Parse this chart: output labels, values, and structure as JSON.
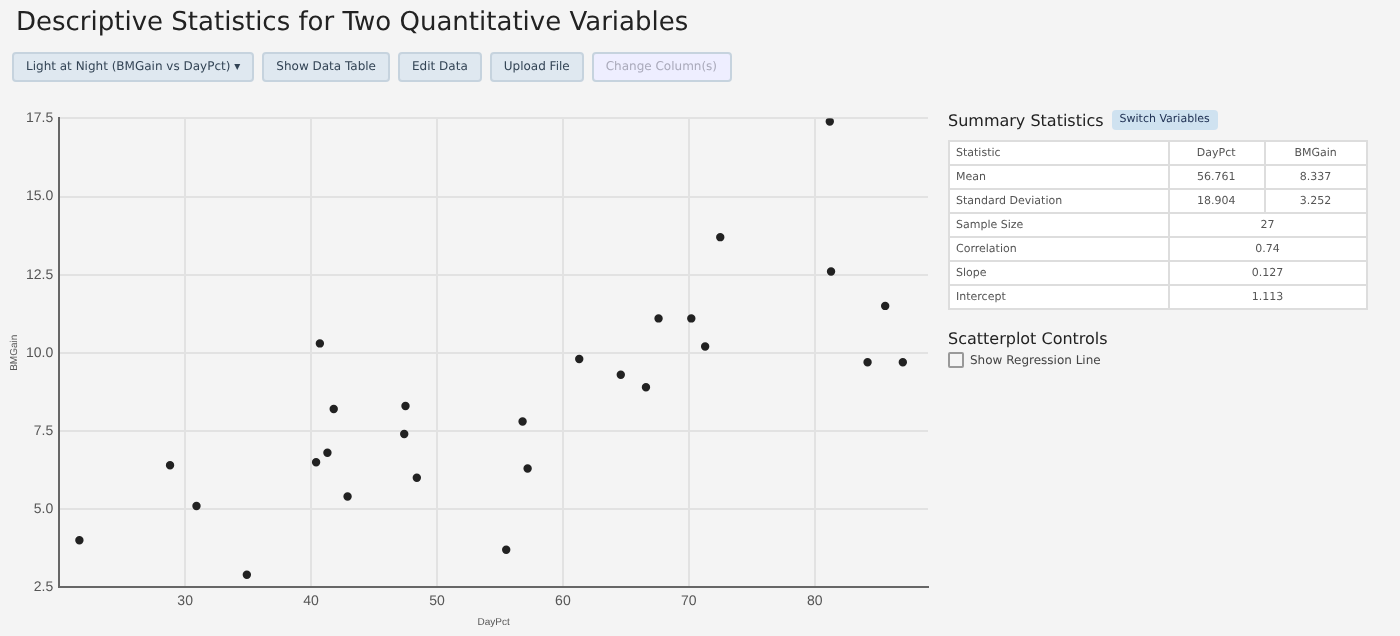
{
  "chart_data": {
    "type": "scatter",
    "title": "Descriptive Statistics for Two Quantitative Variables",
    "xlabel": "DayPct",
    "ylabel": "BMGain",
    "x": [
      21.6,
      28.8,
      30.9,
      34.9,
      40.7,
      41.8,
      41.3,
      40.4,
      42.9,
      47.5,
      47.4,
      48.4,
      81.2,
      72.5,
      81.3,
      85.6,
      67.6,
      70.2,
      71.3,
      61.3,
      84.2,
      87.0,
      64.6,
      66.6,
      56.8,
      57.2,
      55.5
    ],
    "series": [
      {
        "color": "#222222",
        "values": [
          4.0,
          6.4,
          5.1,
          2.9,
          10.3,
          8.2,
          6.8,
          6.5,
          5.4,
          8.3,
          7.4,
          6.0,
          17.4,
          13.7,
          12.6,
          11.5,
          11.1,
          11.1,
          10.2,
          9.8,
          9.7,
          9.7,
          9.3,
          8.9,
          7.8,
          6.3,
          3.7
        ]
      }
    ],
    "xlim": [
      20,
      89
    ],
    "xticks": [
      30,
      40,
      50,
      60,
      70,
      80
    ],
    "ylim": [
      2.5,
      17.5
    ],
    "yticks": [
      {
        "value": 2.5,
        "label": "2.5"
      },
      {
        "value": 5,
        "label": "5.0"
      },
      {
        "value": 7.5,
        "label": "7.5"
      },
      {
        "value": 10,
        "label": "10.0"
      },
      {
        "value": 12.5,
        "label": "12.5"
      },
      {
        "value": 15,
        "label": "15.0"
      },
      {
        "value": 17.5,
        "label": "17.5"
      }
    ],
    "grid": true,
    "legend": false,
    "marker": "circle",
    "annotations": [
      "Light at Night (BMGain vs DayPct) ▾",
      "Show Data Table",
      "Edit Data",
      "Upload File",
      "Change Column(s)",
      "Summary Statistics",
      "Switch Variables",
      "Statistic",
      "DayPct",
      "BMGain",
      "Mean",
      "56.761",
      "8.337",
      "Standard Deviation",
      "18.904",
      "3.252",
      "Sample Size",
      "27",
      "Correlation",
      "0.74",
      "Slope",
      "0.127",
      "Intercept",
      "1.113",
      "Scatterplot Controls",
      "Show Regression Line"
    ]
  }
}
